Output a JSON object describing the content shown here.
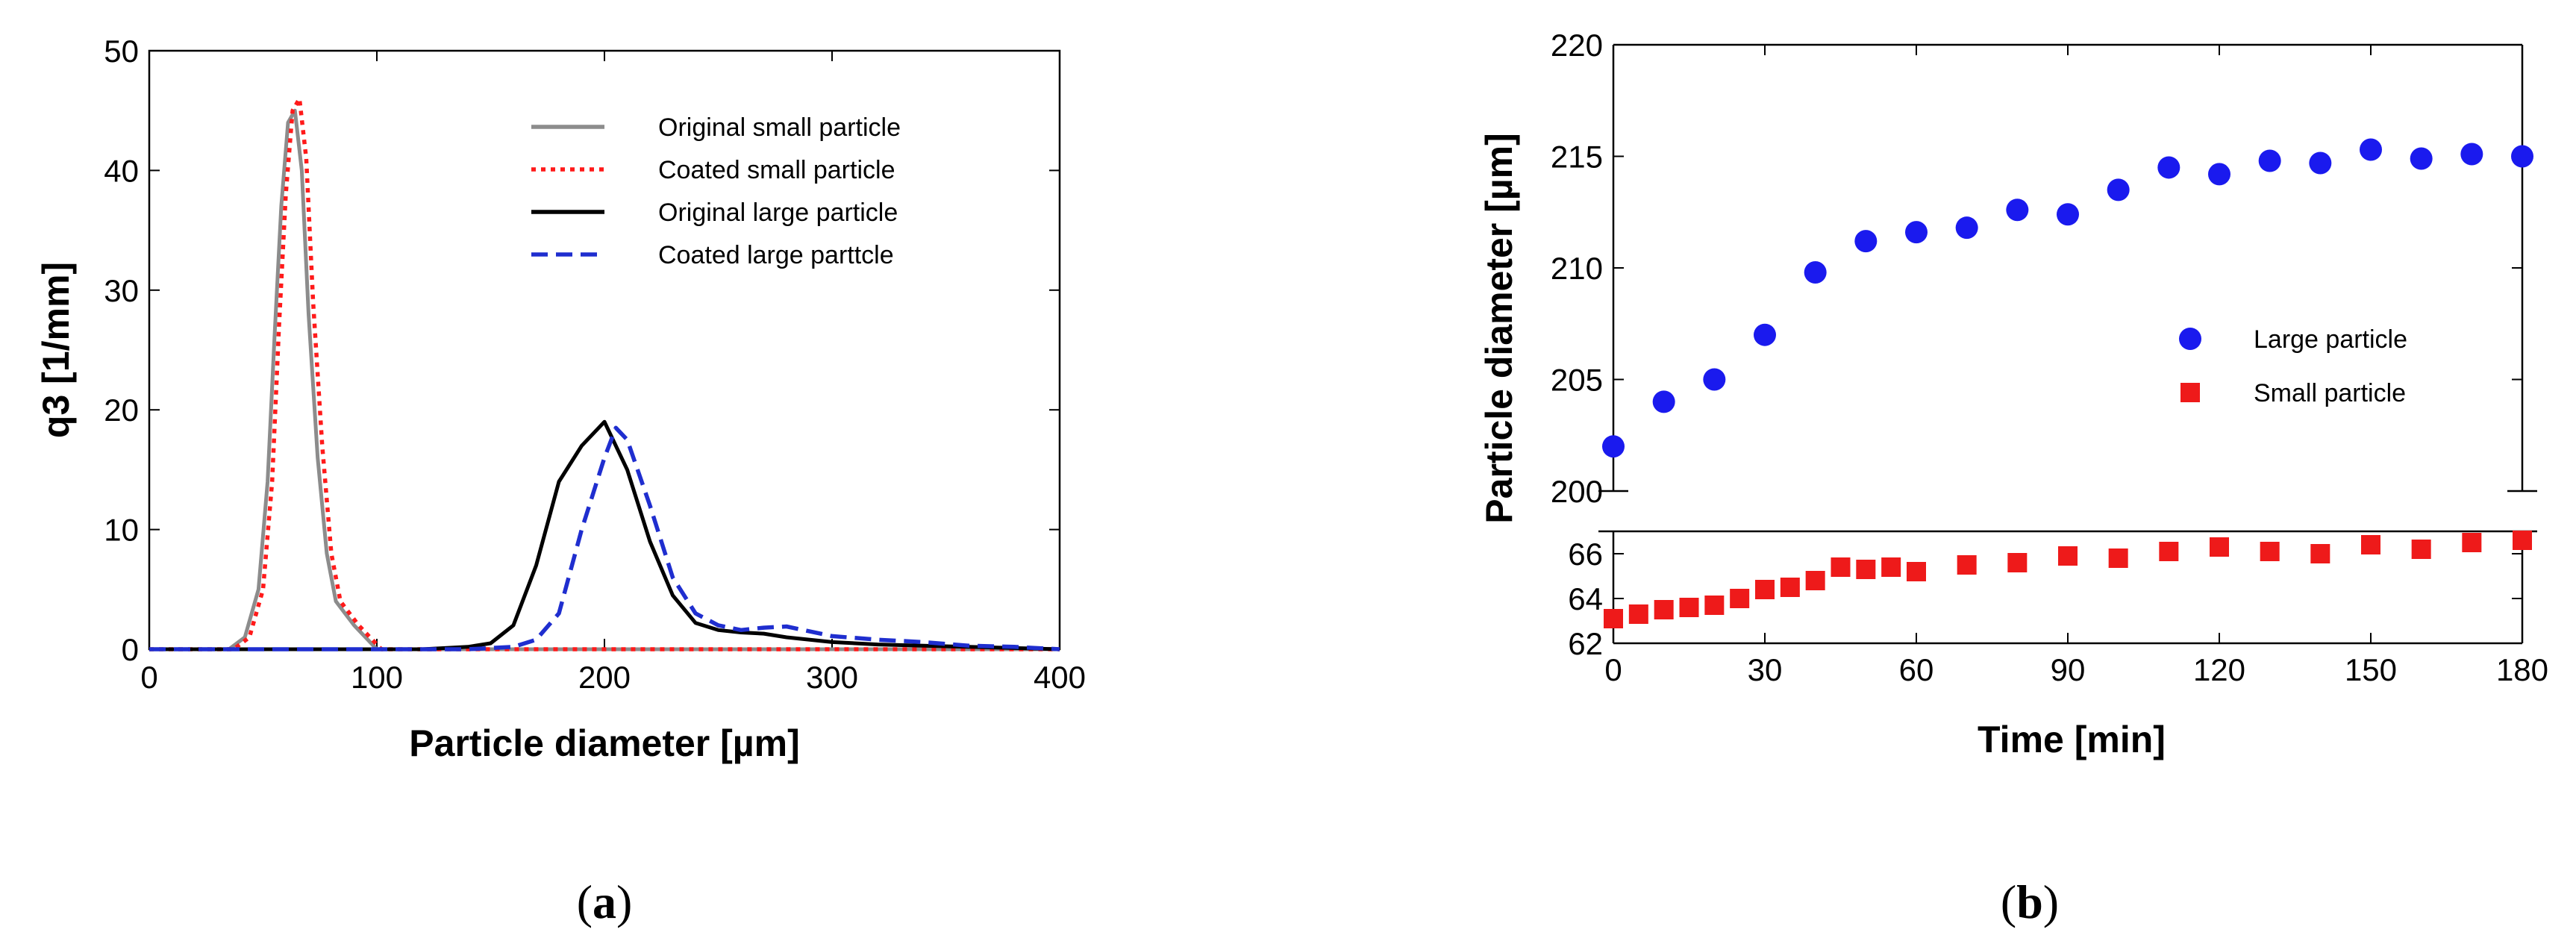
{
  "chart_data": [
    {
      "type": "line",
      "panel_label": "a",
      "caption": {
        "open": "(",
        "letter": "a",
        "close": ")"
      },
      "xlabel": "Particle diameter [µm]",
      "ylabel": "q3 [1/mm]",
      "xlim": [
        0,
        400
      ],
      "ylim": [
        0,
        50
      ],
      "xticks": [
        0,
        100,
        200,
        300,
        400
      ],
      "yticks": [
        0,
        10,
        20,
        30,
        40,
        50
      ],
      "legend_position": "top-right",
      "series": [
        {
          "name": "Original small particle",
          "color": "#8c8c8c",
          "dash": "solid",
          "x": [
            0,
            35,
            42,
            48,
            52,
            55,
            58,
            61,
            64,
            67,
            70,
            74,
            78,
            82,
            86,
            90,
            95,
            100,
            110,
            400
          ],
          "y": [
            0,
            0,
            1,
            5,
            14,
            26,
            37,
            44,
            45,
            40,
            28,
            16,
            8,
            4,
            3,
            2,
            1,
            0,
            0,
            0
          ]
        },
        {
          "name": "Coated small particle",
          "color": "#ff1a1a",
          "dash": "dotted",
          "x": [
            0,
            37,
            44,
            50,
            54,
            57,
            60,
            63,
            66,
            69,
            72,
            76,
            80,
            84,
            88,
            92,
            97,
            102,
            110,
            400
          ],
          "y": [
            0,
            0,
            1,
            5,
            14,
            27,
            38,
            45,
            46,
            41,
            29,
            17,
            8,
            4,
            3,
            2,
            1,
            0,
            0,
            0
          ]
        },
        {
          "name": "Original large particle",
          "color": "#000000",
          "dash": "solid",
          "x": [
            0,
            120,
            140,
            150,
            160,
            170,
            180,
            190,
            200,
            210,
            220,
            230,
            240,
            250,
            260,
            270,
            280,
            300,
            320,
            340,
            360,
            380,
            400
          ],
          "y": [
            0,
            0,
            0.2,
            0.5,
            2,
            7,
            14,
            17,
            19,
            15,
            9,
            4.5,
            2.2,
            1.6,
            1.4,
            1.3,
            1.0,
            0.6,
            0.4,
            0.3,
            0.2,
            0.1,
            0
          ]
        },
        {
          "name": "Coated large parttcle",
          "color": "#1f2ecf",
          "dash": "dashed",
          "x": [
            0,
            140,
            160,
            170,
            180,
            190,
            200,
            205,
            210,
            220,
            230,
            240,
            250,
            260,
            270,
            280,
            290,
            300,
            320,
            340,
            360,
            380,
            400
          ],
          "y": [
            0,
            0,
            0.2,
            0.8,
            3,
            10,
            16,
            18.5,
            17.5,
            12,
            6,
            3,
            2,
            1.6,
            1.8,
            1.9,
            1.5,
            1.1,
            0.8,
            0.6,
            0.3,
            0.2,
            0
          ]
        }
      ]
    },
    {
      "type": "scatter",
      "panel_label": "b",
      "caption": {
        "open": "(",
        "letter": "b",
        "close": ")"
      },
      "xlabel": "Time [min]",
      "ylabel": "Particle diameter [µm]",
      "xlim": [
        0,
        180
      ],
      "xticks": [
        0,
        30,
        60,
        90,
        120,
        150,
        180
      ],
      "broken_y_axis": true,
      "upper_ylim": [
        200,
        220
      ],
      "upper_yticks": [
        200,
        205,
        210,
        215,
        220
      ],
      "lower_ylim": [
        62,
        67
      ],
      "lower_yticks": [
        62,
        64,
        66
      ],
      "legend_position": "center-right",
      "series": [
        {
          "name": "Large particle",
          "marker": "circle",
          "color": "#1a1aee",
          "x": [
            0,
            10,
            20,
            30,
            40,
            50,
            60,
            70,
            80,
            90,
            100,
            110,
            120,
            130,
            140,
            150,
            160,
            170,
            180
          ],
          "y": [
            202.0,
            204.0,
            205.0,
            207.0,
            209.8,
            211.2,
            211.6,
            211.8,
            212.6,
            212.4,
            213.5,
            214.5,
            214.2,
            214.8,
            214.7,
            215.3,
            214.9,
            215.1,
            215.0
          ]
        },
        {
          "name": "Small particle",
          "marker": "square",
          "color": "#ee1a1a",
          "x": [
            0,
            5,
            10,
            15,
            20,
            25,
            30,
            35,
            40,
            45,
            50,
            55,
            60,
            70,
            80,
            90,
            100,
            110,
            120,
            130,
            140,
            150,
            160,
            170,
            180
          ],
          "y": [
            63.1,
            63.3,
            63.5,
            63.6,
            63.7,
            64.0,
            64.4,
            64.5,
            64.8,
            65.4,
            65.3,
            65.4,
            65.2,
            65.5,
            65.6,
            65.9,
            65.8,
            66.1,
            66.3,
            66.1,
            66.0,
            66.4,
            66.2,
            66.5,
            66.6
          ]
        }
      ]
    }
  ]
}
